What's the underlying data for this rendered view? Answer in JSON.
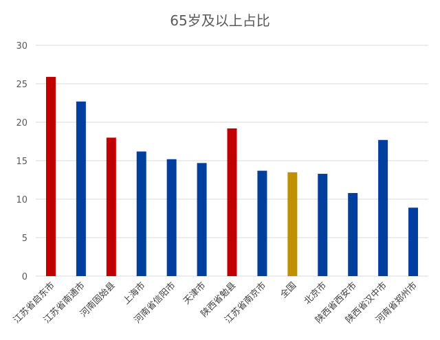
{
  "chart_data": {
    "type": "bar",
    "title": "65岁及以上占比",
    "xlabel": "",
    "ylabel": "",
    "ylim": [
      0,
      30
    ],
    "yticks": [
      0,
      5,
      10,
      15,
      20,
      25,
      30
    ],
    "grid": true,
    "legend": "none",
    "categories": [
      "江苏省启东市",
      "江苏省南通市",
      "河南固始县",
      "上海市",
      "河南省信阳市",
      "天津市",
      "陕西省勉县",
      "江苏省南京市",
      "全国",
      "北京市",
      "陕西省西安市",
      "陕西省汉中市",
      "河南省郑州市"
    ],
    "values": [
      25.9,
      22.7,
      18.0,
      16.2,
      15.2,
      14.7,
      19.2,
      13.7,
      13.5,
      13.3,
      10.8,
      17.7,
      8.9
    ],
    "bar_colors": [
      "#C00000",
      "#003F9E",
      "#C00000",
      "#003F9E",
      "#003F9E",
      "#003F9E",
      "#C00000",
      "#003F9E",
      "#BF9000",
      "#003F9E",
      "#003F9E",
      "#003F9E",
      "#003F9E"
    ]
  }
}
